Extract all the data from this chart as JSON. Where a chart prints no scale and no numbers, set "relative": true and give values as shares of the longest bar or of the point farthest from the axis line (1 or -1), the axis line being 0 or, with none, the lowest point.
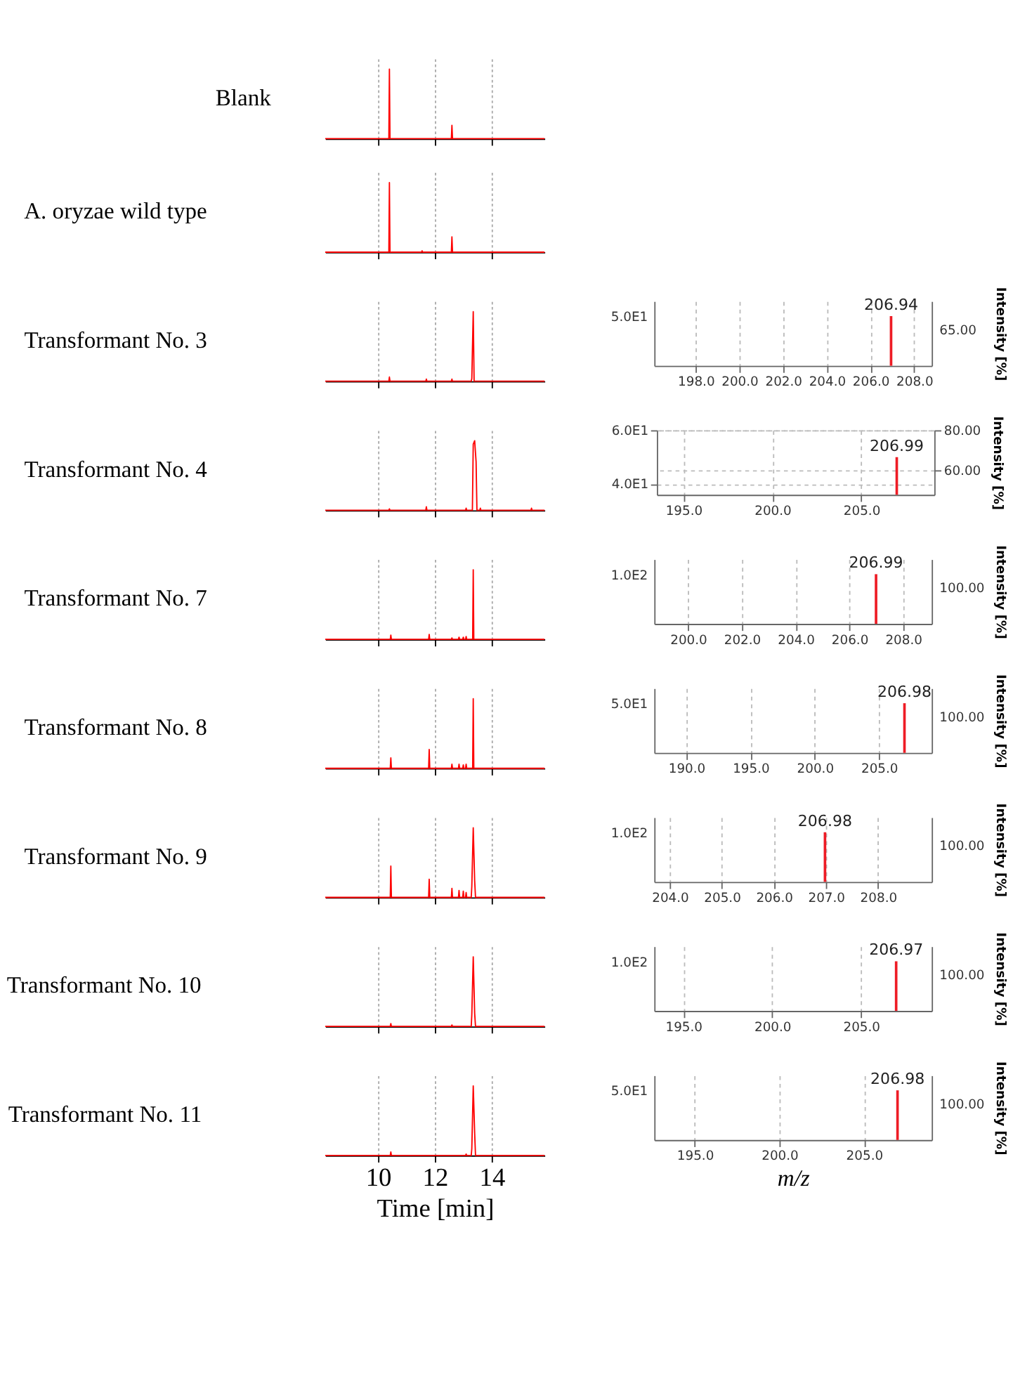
{
  "chart_data": [
    {
      "type": "line",
      "title": "Blank",
      "relative": true,
      "xlim": [
        8.14,
        15.86
      ],
      "xticks": [
        10,
        12,
        14
      ],
      "tick_labels": false,
      "grid": "x",
      "series": [
        {
          "color": "#ff0000",
          "x": [
            8.14,
            10.38,
            10.4,
            10.42,
            12.58,
            12.6,
            12.62,
            15.86
          ],
          "values": [
            0,
            0,
            1,
            0,
            0,
            0.19,
            0,
            0
          ]
        }
      ]
    },
    {
      "type": "line",
      "title": "A. oryzae wild type",
      "relative": true,
      "xlim": [
        8.14,
        15.86
      ],
      "xticks": [
        10,
        12,
        14
      ],
      "tick_labels": false,
      "grid": "x",
      "series": [
        {
          "color": "#ff0000",
          "x": [
            8.14,
            10.38,
            10.4,
            10.42,
            11.53,
            11.55,
            11.57,
            12.58,
            12.6,
            12.62,
            15.86
          ],
          "values": [
            0,
            0,
            1,
            0,
            0,
            0.02,
            0,
            0,
            0.22,
            0,
            0
          ]
        }
      ]
    },
    {
      "type": "line",
      "title": "Transformant No. 3",
      "relative": true,
      "xlim": [
        8.14,
        15.86
      ],
      "xticks": [
        10,
        12,
        14
      ],
      "tick_labels": false,
      "grid": "x",
      "series": [
        {
          "color": "#ff0000",
          "x": [
            8.14,
            10.38,
            10.4,
            10.42,
            11.68,
            11.7,
            11.72,
            12.58,
            12.6,
            12.62,
            13.28,
            13.3,
            13.35,
            13.38,
            15.86
          ],
          "values": [
            0,
            0,
            0.06,
            0,
            0,
            0.03,
            0,
            0,
            0.03,
            0,
            0,
            0.04,
            1,
            0,
            0
          ]
        }
      ]
    },
    {
      "type": "bar",
      "relative": true,
      "xlim": [
        196.1,
        208.8
      ],
      "xticks": [
        {
          "value": 198,
          "label": "198.0"
        },
        {
          "value": 200,
          "label": "200.0"
        },
        {
          "value": 202,
          "label": "202.0"
        },
        {
          "value": 204,
          "label": "204.0"
        },
        {
          "value": 206,
          "label": "206.0"
        },
        {
          "value": 208,
          "label": "208.0"
        }
      ],
      "y2label": "Intensity [%]",
      "grid": "x",
      "series": [
        {
          "color": "#ee1c25",
          "x": [
            206.94
          ],
          "values": [
            1
          ]
        }
      ],
      "annotations": [
        "5.0E1",
        "65.00",
        {
          "text": "206.94",
          "x": 206.94,
          "y": 1
        }
      ]
    },
    {
      "type": "line",
      "title": "Transformant No. 4",
      "relative": true,
      "xlim": [
        8.14,
        15.86
      ],
      "xticks": [
        10,
        12,
        14
      ],
      "tick_labels": false,
      "grid": "x",
      "series": [
        {
          "color": "#ff0000",
          "x": [
            8.14,
            10.38,
            10.4,
            10.42,
            11.68,
            11.7,
            11.72,
            13.08,
            13.1,
            13.12,
            13.32,
            13.35,
            13.4,
            13.45,
            13.48,
            13.58,
            13.6,
            13.62,
            15.38,
            15.4,
            15.42,
            15.86
          ],
          "values": [
            0,
            0,
            0.02,
            0,
            0,
            0.05,
            0,
            0,
            0.03,
            0,
            0,
            0.95,
            1,
            0.7,
            0,
            0,
            0.03,
            0,
            0,
            0.03,
            0,
            0
          ]
        }
      ]
    },
    {
      "type": "bar",
      "xlim": [
        193.5,
        209.1
      ],
      "xticks": [
        {
          "value": 195,
          "label": "195.0"
        },
        {
          "value": 200,
          "label": "200.0"
        },
        {
          "value": 205,
          "label": "205.0"
        }
      ],
      "ylim": [
        36,
        60
      ],
      "yticks": [
        {
          "value": 40,
          "label": "4.0E1"
        },
        {
          "value": 60,
          "label": "6.0E1"
        }
      ],
      "y2lim": [
        47.7,
        80
      ],
      "y2ticks": [
        {
          "value": 60,
          "label": "60.00"
        },
        {
          "value": 80,
          "label": "80.00"
        }
      ],
      "y2label": "Intensity [%]",
      "grid": true,
      "series": [
        {
          "color": "#ee1c25",
          "x": [
            206.99
          ],
          "values": [
            50
          ]
        }
      ],
      "annotations": [
        {
          "text": "206.99",
          "x": 206.99,
          "y": 50
        }
      ]
    },
    {
      "type": "line",
      "title": "Transformant No. 7",
      "relative": true,
      "xlim": [
        8.14,
        15.86
      ],
      "xticks": [
        10,
        12,
        14
      ],
      "tick_labels": false,
      "grid": "x",
      "series": [
        {
          "color": "#ff0000",
          "x": [
            8.14,
            10.43,
            10.45,
            10.47,
            11.78,
            11.8,
            11.82,
            12.58,
            12.6,
            12.62,
            12.83,
            12.85,
            12.87,
            12.98,
            13.0,
            13.02,
            13.08,
            13.1,
            13.12,
            13.33,
            13.35,
            13.37,
            15.86
          ],
          "values": [
            0,
            0,
            0.06,
            0,
            0,
            0.07,
            0,
            0,
            0.02,
            0,
            0,
            0.03,
            0,
            0,
            0.03,
            0,
            0,
            0.04,
            0,
            0,
            1,
            0,
            0
          ]
        }
      ]
    },
    {
      "type": "bar",
      "relative": true,
      "xlim": [
        198.74,
        209.06
      ],
      "xticks": [
        {
          "value": 200,
          "label": "200.0"
        },
        {
          "value": 202,
          "label": "202.0"
        },
        {
          "value": 204,
          "label": "204.0"
        },
        {
          "value": 206,
          "label": "206.0"
        },
        {
          "value": 208,
          "label": "208.0"
        }
      ],
      "y2label": "Intensity [%]",
      "grid": "x",
      "series": [
        {
          "color": "#ee1c25",
          "x": [
            206.99
          ],
          "values": [
            1
          ]
        }
      ],
      "annotations": [
        "1.0E2",
        "100.00",
        {
          "text": "206.99",
          "x": 206.99,
          "y": 1
        }
      ]
    },
    {
      "type": "line",
      "title": "Transformant No. 8",
      "relative": true,
      "xlim": [
        8.14,
        15.86
      ],
      "xticks": [
        10,
        12,
        14
      ],
      "tick_labels": false,
      "grid": "x",
      "series": [
        {
          "color": "#ff0000",
          "x": [
            8.14,
            10.43,
            10.45,
            10.47,
            11.78,
            11.8,
            11.82,
            12.58,
            12.6,
            12.62,
            12.83,
            12.85,
            12.87,
            12.98,
            13.0,
            13.02,
            13.08,
            13.1,
            13.12,
            13.33,
            13.35,
            13.37,
            15.86
          ],
          "values": [
            0,
            0,
            0.15,
            0,
            0,
            0.27,
            0,
            0,
            0.06,
            0,
            0,
            0.06,
            0,
            0,
            0.05,
            0,
            0,
            0.06,
            0,
            0,
            1,
            0,
            0
          ]
        }
      ]
    },
    {
      "type": "bar",
      "relative": true,
      "xlim": [
        187.5,
        209.1
      ],
      "xticks": [
        {
          "value": 190,
          "label": "190.0"
        },
        {
          "value": 195,
          "label": "195.0"
        },
        {
          "value": 200,
          "label": "200.0"
        },
        {
          "value": 205,
          "label": "205.0"
        }
      ],
      "y2label": "Intensity [%]",
      "grid": "x",
      "series": [
        {
          "color": "#ee1c25",
          "x": [
            206.98
          ],
          "values": [
            1
          ]
        }
      ],
      "annotations": [
        "5.0E1",
        "100.00",
        {
          "text": "206.98",
          "x": 206.98,
          "y": 1
        }
      ]
    },
    {
      "type": "line",
      "title": "Transformant No. 9",
      "relative": true,
      "xlim": [
        8.14,
        15.86
      ],
      "xticks": [
        10,
        12,
        14
      ],
      "tick_labels": false,
      "grid": "x",
      "series": [
        {
          "color": "#ff0000",
          "x": [
            8.14,
            10.43,
            10.45,
            10.47,
            11.78,
            11.8,
            11.82,
            12.58,
            12.6,
            12.62,
            12.83,
            12.85,
            12.87,
            12.98,
            13.0,
            13.02,
            13.08,
            13.1,
            13.12,
            13.28,
            13.3,
            13.35,
            13.4,
            13.43,
            15.86
          ],
          "values": [
            0,
            0,
            0.45,
            0,
            0,
            0.26,
            0,
            0,
            0.13,
            0,
            0,
            0.1,
            0,
            0,
            0.09,
            0,
            0,
            0.07,
            0,
            0,
            0.16,
            1,
            0.24,
            0,
            0
          ]
        }
      ]
    },
    {
      "type": "bar",
      "relative": true,
      "xlim": [
        203.7,
        209.03
      ],
      "xticks": [
        {
          "value": 204,
          "label": "204.0"
        },
        {
          "value": 205,
          "label": "205.0"
        },
        {
          "value": 206,
          "label": "206.0"
        },
        {
          "value": 207,
          "label": "207.0"
        },
        {
          "value": 208,
          "label": "208.0"
        }
      ],
      "y2label": "Intensity [%]",
      "grid": "x",
      "series": [
        {
          "color": "#ee1c25",
          "x": [
            206.98
          ],
          "values": [
            1
          ]
        }
      ],
      "annotations": [
        "1.0E2",
        "100.00",
        {
          "text": "206.98",
          "x": 206.98,
          "y": 1
        }
      ]
    },
    {
      "type": "line",
      "title": "Transformant No. 10",
      "relative": true,
      "xlim": [
        8.14,
        15.86
      ],
      "xticks": [
        10,
        12,
        14
      ],
      "tick_labels": false,
      "grid": "x",
      "series": [
        {
          "color": "#ff0000",
          "x": [
            8.14,
            10.43,
            10.45,
            10.47,
            12.58,
            12.6,
            12.62,
            13.28,
            13.3,
            13.35,
            13.4,
            13.43,
            15.86
          ],
          "values": [
            0,
            0,
            0.04,
            0,
            0,
            0.02,
            0,
            0,
            0.17,
            1,
            0.19,
            0,
            0
          ]
        }
      ]
    },
    {
      "type": "bar",
      "relative": true,
      "xlim": [
        193.36,
        208.97
      ],
      "xticks": [
        {
          "value": 195,
          "label": "195.0"
        },
        {
          "value": 200,
          "label": "200.0"
        },
        {
          "value": 205,
          "label": "205.0"
        }
      ],
      "y2label": "Intensity [%]",
      "grid": "x",
      "series": [
        {
          "color": "#ee1c25",
          "x": [
            206.97
          ],
          "values": [
            1
          ]
        }
      ],
      "annotations": [
        "1.0E2",
        "100.00",
        {
          "text": "206.97",
          "x": 206.97,
          "y": 1
        }
      ]
    },
    {
      "type": "line",
      "title": "Transformant No. 11",
      "xlabel": "Time [min]",
      "relative": true,
      "xlim": [
        8.14,
        15.86
      ],
      "xticks": [
        10,
        12,
        14
      ],
      "tick_labels": "x",
      "grid": "x",
      "series": [
        {
          "color": "#ff0000",
          "x": [
            8.14,
            10.43,
            10.45,
            10.47,
            13.08,
            13.1,
            13.12,
            13.28,
            13.3,
            13.35,
            13.4,
            13.43,
            15.86
          ],
          "values": [
            0,
            0,
            0.05,
            0,
            0,
            0.02,
            0,
            0,
            0.1,
            1,
            0.32,
            0,
            0
          ]
        }
      ]
    },
    {
      "type": "bar",
      "relative": true,
      "xlabel": "m/z",
      "xlim": [
        192.6,
        209.0
      ],
      "xticks": [
        {
          "value": 195,
          "label": "195.0"
        },
        {
          "value": 200,
          "label": "200.0"
        },
        {
          "value": 205,
          "label": "205.0"
        }
      ],
      "y2label": "Intensity [%]",
      "grid": "x",
      "series": [
        {
          "color": "#ee1c25",
          "x": [
            206.98
          ],
          "values": [
            1
          ]
        }
      ],
      "annotations": [
        "5.0E1",
        "100.00",
        {
          "text": "206.98",
          "x": 206.98,
          "y": 1
        }
      ]
    }
  ]
}
